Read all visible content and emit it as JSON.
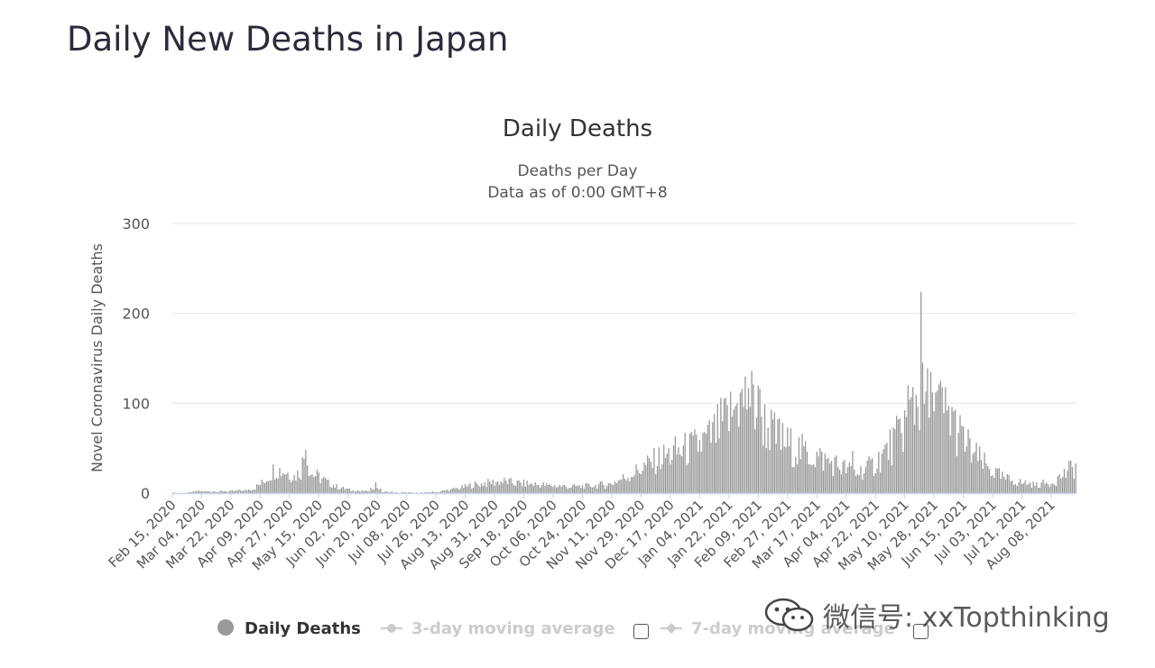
{
  "page": {
    "title": "Daily New Deaths in Japan"
  },
  "watermark": {
    "text": "微信号: xxTopthinking"
  },
  "chart_data": {
    "type": "bar",
    "title": "Daily Deaths",
    "subtitle_lines": [
      "Deaths per Day",
      "Data as of 0:00 GMT+8"
    ],
    "ylabel": "Novel Coronavirus Daily Deaths",
    "xlabel": "",
    "ylim": [
      0,
      300
    ],
    "yticks": [
      0,
      100,
      200,
      300
    ],
    "grid": true,
    "x_start": "2020-02-15",
    "x_end": "2021-08-23",
    "x_tick_labels": [
      "Feb 15, 2020",
      "Mar 04, 2020",
      "Mar 22, 2020",
      "Apr 09, 2020",
      "Apr 27, 2020",
      "May 15, 2020",
      "Jun 02, 2020",
      "Jun 20, 2020",
      "Jul 08, 2020",
      "Jul 26, 2020",
      "Aug 13, 2020",
      "Aug 31, 2020",
      "Sep 18, 2020",
      "Oct 06, 2020",
      "Oct 24, 2020",
      "Nov 11, 2020",
      "Nov 29, 2020",
      "Dec 17, 2020",
      "Jan 04, 2021",
      "Jan 22, 2021",
      "Feb 09, 2021",
      "Feb 27, 2021",
      "Mar 17, 2021",
      "Apr 04, 2021",
      "Apr 22, 2021",
      "May 10, 2021",
      "May 28, 2021",
      "Jun 15, 2021",
      "Jul 03, 2021",
      "Jul 21, 2021",
      "Aug 08, 2021"
    ],
    "series": [
      {
        "name": "Daily Deaths",
        "color": "#999999",
        "anchors": [
          [
            "2020-02-15",
            0
          ],
          [
            "2020-02-25",
            0
          ],
          [
            "2020-03-02",
            2
          ],
          [
            "2020-03-10",
            2
          ],
          [
            "2020-03-20",
            2
          ],
          [
            "2020-03-31",
            3
          ],
          [
            "2020-04-05",
            5
          ],
          [
            "2020-04-12",
            14
          ],
          [
            "2020-04-18",
            27
          ],
          [
            "2020-04-25",
            24
          ],
          [
            "2020-04-30",
            18
          ],
          [
            "2020-05-04",
            25
          ],
          [
            "2020-05-07",
            48
          ],
          [
            "2020-05-10",
            22
          ],
          [
            "2020-05-15",
            18
          ],
          [
            "2020-05-22",
            10
          ],
          [
            "2020-05-30",
            5
          ],
          [
            "2020-06-05",
            3
          ],
          [
            "2020-06-15",
            2
          ],
          [
            "2020-06-19",
            10
          ],
          [
            "2020-06-23",
            1
          ],
          [
            "2020-07-05",
            0
          ],
          [
            "2020-07-15",
            0
          ],
          [
            "2020-07-26",
            1
          ],
          [
            "2020-08-05",
            4
          ],
          [
            "2020-08-15",
            8
          ],
          [
            "2020-08-25",
            11
          ],
          [
            "2020-09-05",
            13
          ],
          [
            "2020-09-15",
            11
          ],
          [
            "2020-09-30",
            9
          ],
          [
            "2020-10-15",
            7
          ],
          [
            "2020-10-30",
            8
          ],
          [
            "2020-11-10",
            10
          ],
          [
            "2020-11-20",
            18
          ],
          [
            "2020-11-30",
            28
          ],
          [
            "2020-12-10",
            38
          ],
          [
            "2020-12-20",
            45
          ],
          [
            "2020-12-31",
            50
          ],
          [
            "2021-01-10",
            60
          ],
          [
            "2021-01-20",
            80
          ],
          [
            "2021-01-27",
            95
          ],
          [
            "2021-02-02",
            105
          ],
          [
            "2021-02-07",
            98
          ],
          [
            "2021-02-14",
            75
          ],
          [
            "2021-02-21",
            60
          ],
          [
            "2021-03-01",
            52
          ],
          [
            "2021-03-10",
            45
          ],
          [
            "2021-03-20",
            38
          ],
          [
            "2021-03-31",
            30
          ],
          [
            "2021-04-10",
            22
          ],
          [
            "2021-04-20",
            30
          ],
          [
            "2021-04-28",
            45
          ],
          [
            "2021-05-05",
            60
          ],
          [
            "2021-05-12",
            85
          ],
          [
            "2021-05-18",
            105
          ],
          [
            "2021-05-25",
            100
          ],
          [
            "2021-06-01",
            95
          ],
          [
            "2021-06-08",
            80
          ],
          [
            "2021-06-15",
            58
          ],
          [
            "2021-06-22",
            42
          ],
          [
            "2021-06-30",
            28
          ],
          [
            "2021-07-10",
            16
          ],
          [
            "2021-07-20",
            12
          ],
          [
            "2021-07-30",
            9
          ],
          [
            "2021-08-08",
            12
          ],
          [
            "2021-08-15",
            20
          ],
          [
            "2021-08-23",
            30
          ]
        ],
        "spikes": [
          [
            "2020-05-07",
            48
          ],
          [
            "2021-01-27",
            100
          ],
          [
            "2021-02-03",
            117
          ],
          [
            "2021-02-09",
            120
          ],
          [
            "2021-02-22",
            83
          ],
          [
            "2021-04-08",
            47
          ],
          [
            "2021-05-12",
            120
          ],
          [
            "2021-05-15",
            118
          ],
          [
            "2021-05-20",
            224
          ],
          [
            "2021-05-27",
            112
          ],
          [
            "2021-06-02",
            118
          ],
          [
            "2021-06-08",
            96
          ]
        ]
      },
      {
        "name": "3-day moving average",
        "color": "#cccccc",
        "visible": false
      },
      {
        "name": "7-day moving average",
        "color": "#cccccc",
        "visible": false
      }
    ]
  }
}
